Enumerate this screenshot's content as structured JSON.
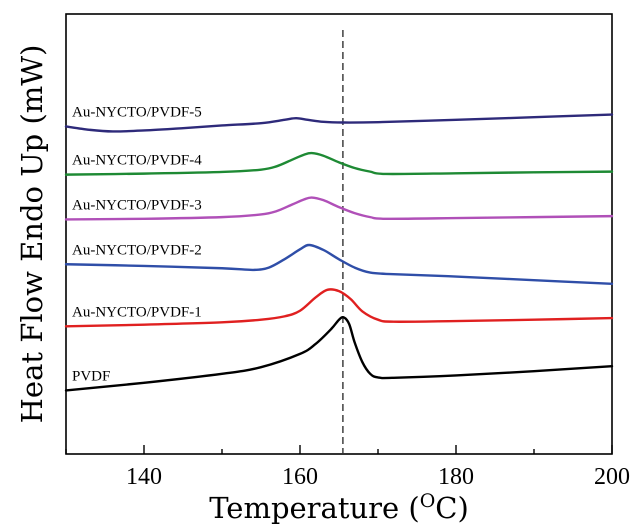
{
  "chart_data": {
    "type": "line",
    "title": "",
    "xlabel": "Temperature (OC)",
    "xlabel_main": "Temperature (",
    "xlabel_sup": "O",
    "xlabel_end": "C)",
    "ylabel": "Heat Flow Endo Up (mW)",
    "xlim": [
      130,
      200
    ],
    "ylim": [
      0,
      100
    ],
    "y_ticks_shown": false,
    "grid": false,
    "x_ticks": [
      140,
      160,
      180,
      200
    ],
    "x_tick_labels": [
      "140",
      "160",
      "180",
      "200"
    ],
    "reference_line": {
      "x": 165.5,
      "style": "dashed"
    },
    "series": [
      {
        "name": "Au-NYCTO/PVDF-5",
        "color": "#2e2a7a",
        "points": [
          [
            130,
            86.0
          ],
          [
            133,
            85.0
          ],
          [
            136,
            84.5
          ],
          [
            140,
            84.8
          ],
          [
            145,
            85.5
          ],
          [
            150,
            86.3
          ],
          [
            155,
            87.0
          ],
          [
            158,
            88.0
          ],
          [
            159.5,
            88.5
          ],
          [
            161,
            88.0
          ],
          [
            163,
            87.4
          ],
          [
            165.5,
            87.2
          ],
          [
            170,
            87.3
          ],
          [
            180,
            88.0
          ],
          [
            190,
            88.8
          ],
          [
            200,
            89.6
          ]
        ]
      },
      {
        "name": "Au-NYCTO/PVDF-4",
        "color": "#1e8a34",
        "points": [
          [
            130,
            71.5
          ],
          [
            140,
            71.8
          ],
          [
            150,
            72.3
          ],
          [
            155,
            73.0
          ],
          [
            157,
            74.0
          ],
          [
            159,
            76.0
          ],
          [
            160.5,
            77.5
          ],
          [
            161.5,
            78.0
          ],
          [
            163,
            77.2
          ],
          [
            165,
            75.2
          ],
          [
            167,
            73.5
          ],
          [
            169,
            72.4
          ],
          [
            171,
            71.7
          ],
          [
            180,
            71.9
          ],
          [
            190,
            72.2
          ],
          [
            200,
            72.4
          ]
        ]
      },
      {
        "name": "Au-NYCTO/PVDF-3",
        "color": "#b050b8",
        "points": [
          [
            130,
            58.0
          ],
          [
            140,
            58.2
          ],
          [
            150,
            58.7
          ],
          [
            155,
            59.5
          ],
          [
            157,
            60.5
          ],
          [
            159,
            62.5
          ],
          [
            160.5,
            64.0
          ],
          [
            161.5,
            64.6
          ],
          [
            163,
            63.8
          ],
          [
            165,
            61.7
          ],
          [
            167,
            59.9
          ],
          [
            169,
            58.7
          ],
          [
            171,
            58.2
          ],
          [
            180,
            58.4
          ],
          [
            190,
            58.7
          ],
          [
            200,
            59.0
          ]
        ]
      },
      {
        "name": "Au-NYCTO/PVDF-2",
        "color": "#2f4ea8",
        "points": [
          [
            130,
            44.5
          ],
          [
            140,
            44.0
          ],
          [
            150,
            43.3
          ],
          [
            154,
            42.8
          ],
          [
            156,
            43.5
          ],
          [
            158,
            46.0
          ],
          [
            160,
            49.0
          ],
          [
            161.2,
            50.3
          ],
          [
            163,
            48.8
          ],
          [
            165,
            46.0
          ],
          [
            167,
            43.5
          ],
          [
            169,
            42.0
          ],
          [
            172,
            41.5
          ],
          [
            180,
            40.8
          ],
          [
            190,
            39.7
          ],
          [
            200,
            38.6
          ]
        ]
      },
      {
        "name": "Au-NYCTO/PVDF-1",
        "color": "#e02020",
        "points": [
          [
            130,
            25.8
          ],
          [
            140,
            26.3
          ],
          [
            150,
            27.0
          ],
          [
            155,
            27.8
          ],
          [
            158,
            28.8
          ],
          [
            160,
            30.5
          ],
          [
            162,
            34.5
          ],
          [
            163.5,
            36.8
          ],
          [
            165,
            36.4
          ],
          [
            166.5,
            34.0
          ],
          [
            168,
            30.3
          ],
          [
            170,
            27.8
          ],
          [
            172,
            27.2
          ],
          [
            180,
            27.4
          ],
          [
            190,
            27.8
          ],
          [
            200,
            28.3
          ]
        ]
      },
      {
        "name": "PVDF",
        "color": "#000000",
        "points": [
          [
            130,
            6.5
          ],
          [
            140,
            8.8
          ],
          [
            150,
            11.5
          ],
          [
            155,
            13.5
          ],
          [
            160,
            17.5
          ],
          [
            162,
            20.5
          ],
          [
            164,
            25.0
          ],
          [
            165,
            27.8
          ],
          [
            165.6,
            28.5
          ],
          [
            166.3,
            26.5
          ],
          [
            167,
            21.0
          ],
          [
            168,
            15.0
          ],
          [
            169,
            11.5
          ],
          [
            170,
            10.4
          ],
          [
            172,
            10.3
          ],
          [
            180,
            11.0
          ],
          [
            190,
            12.3
          ],
          [
            200,
            13.8
          ]
        ]
      }
    ]
  }
}
